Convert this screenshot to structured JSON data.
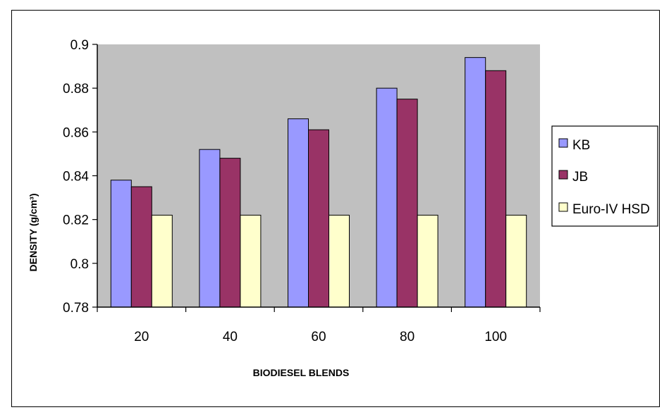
{
  "chart_data": {
    "type": "bar",
    "title": "",
    "xlabel": "BIODIESEL BLENDS",
    "ylabel": "DENSITY (g/cm³)",
    "categories": [
      "20",
      "40",
      "60",
      "80",
      "100"
    ],
    "ylim": [
      0.78,
      0.9
    ],
    "yticks": [
      "0.78",
      "0.8",
      "0.82",
      "0.84",
      "0.86",
      "0.88",
      "0.9"
    ],
    "grid": false,
    "legend_position": "right",
    "plot_background": "#c0c0c0",
    "series": [
      {
        "name": "KB",
        "color": "#9999ff",
        "values": [
          0.838,
          0.852,
          0.866,
          0.88,
          0.894
        ]
      },
      {
        "name": "JB",
        "color": "#993366",
        "values": [
          0.835,
          0.848,
          0.861,
          0.875,
          0.888
        ]
      },
      {
        "name": "Euro-IV HSD",
        "color": "#ffffcc",
        "values": [
          0.822,
          0.822,
          0.822,
          0.822,
          0.822
        ]
      }
    ]
  }
}
